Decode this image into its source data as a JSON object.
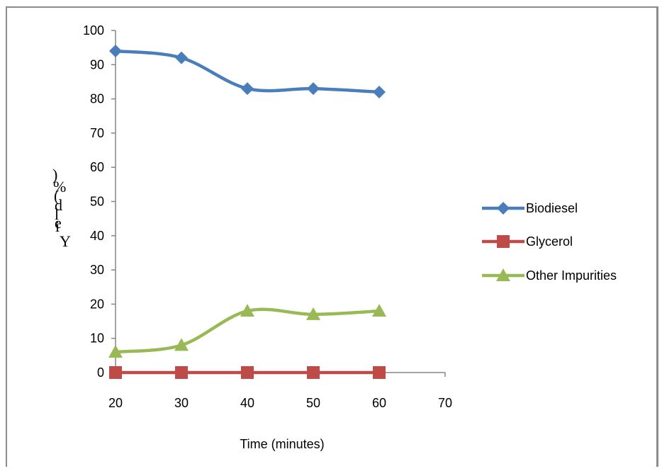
{
  "chart_data": {
    "type": "line",
    "xlabel": "Time (minutes)",
    "ylabel_glyphs": [
      ")",
      "%",
      "(",
      "d",
      "l",
      "e",
      "i",
      "Y"
    ],
    "xlim": [
      20,
      70
    ],
    "ylim": [
      0,
      100
    ],
    "xticks": [
      "20",
      "30",
      "40",
      "50",
      "60",
      "70"
    ],
    "yticks": [
      "0",
      "10",
      "20",
      "30",
      "40",
      "50",
      "60",
      "70",
      "80",
      "90",
      "100"
    ],
    "grid": false,
    "legend_position": "right",
    "x": [
      20,
      30,
      40,
      50,
      60
    ],
    "series": [
      {
        "name": "Biodiesel",
        "values": [
          94,
          92,
          83,
          83,
          82
        ],
        "color": "#4a7ebb",
        "marker": "diamond"
      },
      {
        "name": "Glycerol",
        "values": [
          0,
          0,
          0,
          0,
          0
        ],
        "color": "#be4b48",
        "marker": "square"
      },
      {
        "name": "Other Impurities",
        "values": [
          6,
          8,
          18,
          17,
          18
        ],
        "color": "#98b954",
        "marker": "triangle"
      }
    ]
  }
}
